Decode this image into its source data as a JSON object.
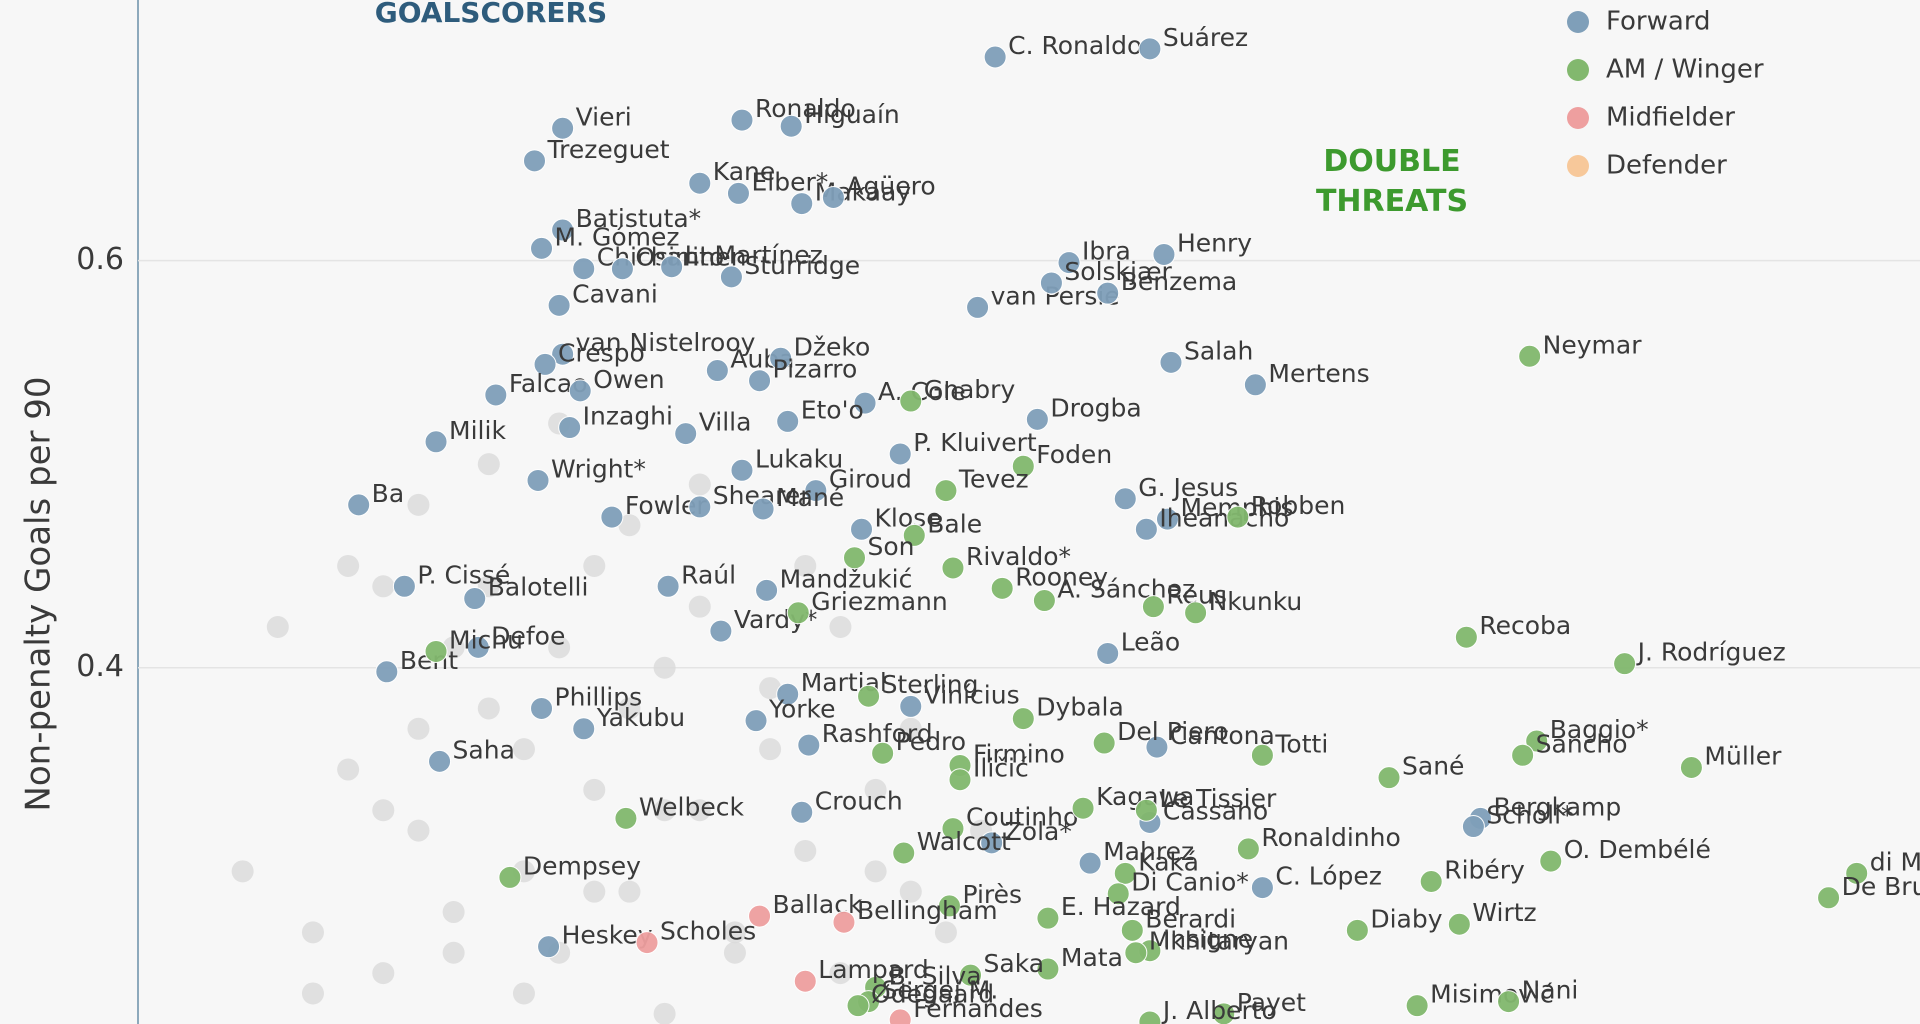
{
  "chart_data": {
    "type": "scatter",
    "y_label": "Non-penalty Goals per 90",
    "annotations": [
      "GOALSCORERS",
      "DOUBLE THREATS"
    ],
    "xlim": [
      -0.039,
      0.507
    ],
    "ylim": [
      0.225,
      0.728
    ],
    "yticks": [
      0.4,
      0.6
    ],
    "grid": true,
    "legend": "upper right",
    "background_points": {
      "color": "#d9d9d9",
      "x": [
        0.03,
        0.05,
        0.06,
        0.07,
        0.08,
        0.09,
        0.1,
        0.11,
        0.12,
        0.13,
        0.14,
        0.15,
        0.16,
        0.17,
        0.18,
        0.19,
        0.2,
        0.21,
        0.22,
        0.24,
        0.04,
        0.06,
        0.08,
        0.1,
        0.12,
        0.14,
        0.16,
        0.18,
        0.2,
        0.22,
        0.05,
        0.07,
        0.09,
        0.11,
        0.13,
        0.15,
        0.17,
        0.19,
        0.21,
        0.23,
        0.08,
        0.1,
        0.12,
        0.14,
        0.16,
        0.11,
        0.13,
        0.15,
        0.09,
        0.07
      ],
      "values": [
        0.3,
        0.27,
        0.35,
        0.25,
        0.32,
        0.28,
        0.38,
        0.3,
        0.26,
        0.34,
        0.29,
        0.4,
        0.33,
        0.27,
        0.36,
        0.31,
        0.25,
        0.34,
        0.29,
        0.32,
        0.42,
        0.45,
        0.37,
        0.44,
        0.41,
        0.47,
        0.43,
        0.39,
        0.42,
        0.37,
        0.24,
        0.33,
        0.41,
        0.36,
        0.29,
        0.33,
        0.26,
        0.45,
        0.3,
        0.27,
        0.48,
        0.5,
        0.52,
        0.38,
        0.49,
        0.24,
        0.45,
        0.23,
        0.26,
        0.44
      ]
    },
    "series": [
      {
        "name": "Forward",
        "color": "#7f9fb9",
        "labels": [
          "C. Ronaldo",
          "Suárez",
          "Ronaldo",
          "Vieri",
          "Higuaín",
          "Trezeguet",
          "Kane",
          "Elber*",
          "Makaay",
          "Agüero",
          "Batistuta*",
          "M. Gómez",
          "Chicharito",
          "Osimhen",
          "L. Martínez",
          "Sturridge",
          "Ibra",
          "Henry",
          "van Persie",
          "Solskjær",
          "Benzema",
          "Cavani",
          "van Nistelrooy",
          "Crespo",
          "Falcao",
          "Owen",
          "Auba",
          "Džeko",
          "Pizarro",
          "A. Cole",
          "Eto'o",
          "Milik",
          "Inzaghi",
          "Villa",
          "Salah",
          "Mertens",
          "Drogba",
          "P. Kluivert",
          "Giroud",
          "Lukaku",
          "Wright*",
          "Fowler",
          "Ba",
          "Shearer",
          "Mané",
          "Klose",
          "G. Jesus",
          "Memphis",
          "Iheanacho",
          "P. Cissé",
          "Balotelli",
          "Raúl",
          "Mandžukić",
          "Vardy*",
          "Defoe",
          "Bent",
          "Leão",
          "Martial",
          "Phillips",
          "Vinícius",
          "Yorke",
          "Yakubu",
          "Saha",
          "Rashford",
          "Cantona",
          "Crouch",
          "Bergkamp",
          "Scholl*",
          "Cassano",
          "Zola*",
          "Mahrez",
          "C. López",
          "Heskey"
        ],
        "x": [
          0.244,
          0.288,
          0.172,
          0.121,
          0.186,
          0.113,
          0.16,
          0.171,
          0.189,
          0.198,
          0.121,
          0.115,
          0.127,
          0.138,
          0.152,
          0.169,
          0.265,
          0.292,
          0.239,
          0.26,
          0.276,
          0.12,
          0.121,
          0.116,
          0.102,
          0.126,
          0.165,
          0.183,
          0.177,
          0.207,
          0.185,
          0.085,
          0.123,
          0.156,
          0.294,
          0.318,
          0.256,
          0.217,
          0.193,
          0.172,
          0.114,
          0.135,
          0.063,
          0.16,
          0.178,
          0.206,
          0.281,
          0.293,
          0.287,
          0.076,
          0.096,
          0.151,
          0.179,
          0.166,
          0.097,
          0.071,
          0.276,
          0.185,
          0.115,
          0.22,
          0.176,
          0.127,
          0.086,
          0.191,
          0.29,
          0.189,
          0.382,
          0.38,
          0.288,
          0.243,
          0.271,
          0.32,
          0.117
        ],
        "values": [
          0.7,
          0.704,
          0.669,
          0.665,
          0.666,
          0.649,
          0.638,
          0.633,
          0.628,
          0.631,
          0.615,
          0.606,
          0.596,
          0.596,
          0.597,
          0.592,
          0.599,
          0.603,
          0.577,
          0.589,
          0.584,
          0.578,
          0.554,
          0.549,
          0.534,
          0.536,
          0.546,
          0.552,
          0.541,
          0.53,
          0.521,
          0.511,
          0.518,
          0.515,
          0.55,
          0.539,
          0.522,
          0.505,
          0.487,
          0.497,
          0.492,
          0.474,
          0.48,
          0.479,
          0.478,
          0.468,
          0.483,
          0.473,
          0.468,
          0.44,
          0.434,
          0.44,
          0.438,
          0.418,
          0.41,
          0.398,
          0.407,
          0.387,
          0.38,
          0.381,
          0.374,
          0.37,
          0.354,
          0.362,
          0.361,
          0.329,
          0.326,
          0.322,
          0.324,
          0.314,
          0.304,
          0.292,
          0.263
        ]
      },
      {
        "name": "AM / Winger",
        "color": "#82b86e",
        "labels": [
          "Neymar",
          "Gnabry",
          "Foden",
          "Tevez",
          "Robben",
          "Bale",
          "Son",
          "Rivaldo*",
          "Rooney",
          "A. Sánchez",
          "Reus",
          "Nkunku",
          "Griezmann",
          "Michu",
          "Recoba",
          "J. Rodríguez",
          "Sterling",
          "Dybala",
          "Baggio*",
          "Sancho",
          "Müller",
          "Del Piero",
          "Totti",
          "Firmino",
          "Pedro",
          "Iličić",
          "Sané",
          "Welbeck",
          "Coutinho",
          "Kagawa",
          "Le Tissier",
          "Ronaldinho",
          "Ribéry",
          "O. Dembélé",
          "di María",
          "De Bruyne",
          "Dempsey",
          "Walcott",
          "Kaká",
          "Di Canio*",
          "Pirès",
          "E. Hazard",
          "Berardi",
          "Insigne",
          "Mata",
          "Mkhitaryan",
          "Diaby",
          "Wirtz",
          "Saka",
          "B. Silva",
          "Payet",
          "Misimović",
          "Nani",
          "J. Alberto",
          "Sergej M.",
          "Ødegaard"
        ],
        "x": [
          0.396,
          0.22,
          0.252,
          0.23,
          0.313,
          0.221,
          0.204,
          0.232,
          0.246,
          0.258,
          0.289,
          0.301,
          0.188,
          0.085,
          0.378,
          0.423,
          0.208,
          0.252,
          0.398,
          0.394,
          0.442,
          0.275,
          0.32,
          0.234,
          0.212,
          0.234,
          0.356,
          0.139,
          0.232,
          0.269,
          0.287,
          0.316,
          0.368,
          0.402,
          0.489,
          0.481,
          0.106,
          0.218,
          0.281,
          0.279,
          0.231,
          0.259,
          0.283,
          0.288,
          0.259,
          0.284,
          0.347,
          0.376,
          0.237,
          0.21,
          0.309,
          0.364,
          0.39,
          0.288,
          0.208,
          0.205
        ],
        "values": [
          0.553,
          0.531,
          0.499,
          0.487,
          0.474,
          0.465,
          0.454,
          0.449,
          0.439,
          0.433,
          0.43,
          0.427,
          0.427,
          0.408,
          0.415,
          0.402,
          0.386,
          0.375,
          0.364,
          0.357,
          0.351,
          0.363,
          0.357,
          0.352,
          0.358,
          0.345,
          0.346,
          0.326,
          0.321,
          0.331,
          0.33,
          0.311,
          0.295,
          0.305,
          0.299,
          0.287,
          0.297,
          0.309,
          0.299,
          0.289,
          0.283,
          0.277,
          0.271,
          0.261,
          0.252,
          0.26,
          0.271,
          0.274,
          0.249,
          0.243,
          0.23,
          0.234,
          0.236,
          0.226,
          0.236,
          0.234
        ]
      },
      {
        "name": "Midfielder",
        "color": "#ee9f9f",
        "labels": [
          "Scholes",
          "Ballack",
          "Bellingham",
          "Lampard",
          "Fernandes"
        ],
        "x": [
          0.145,
          0.177,
          0.201,
          0.19,
          0.217
        ],
        "values": [
          0.265,
          0.278,
          0.275,
          0.246,
          0.227
        ]
      },
      {
        "name": "Defender",
        "color": "#f7c89a",
        "labels": [],
        "x": [],
        "values": []
      }
    ]
  }
}
